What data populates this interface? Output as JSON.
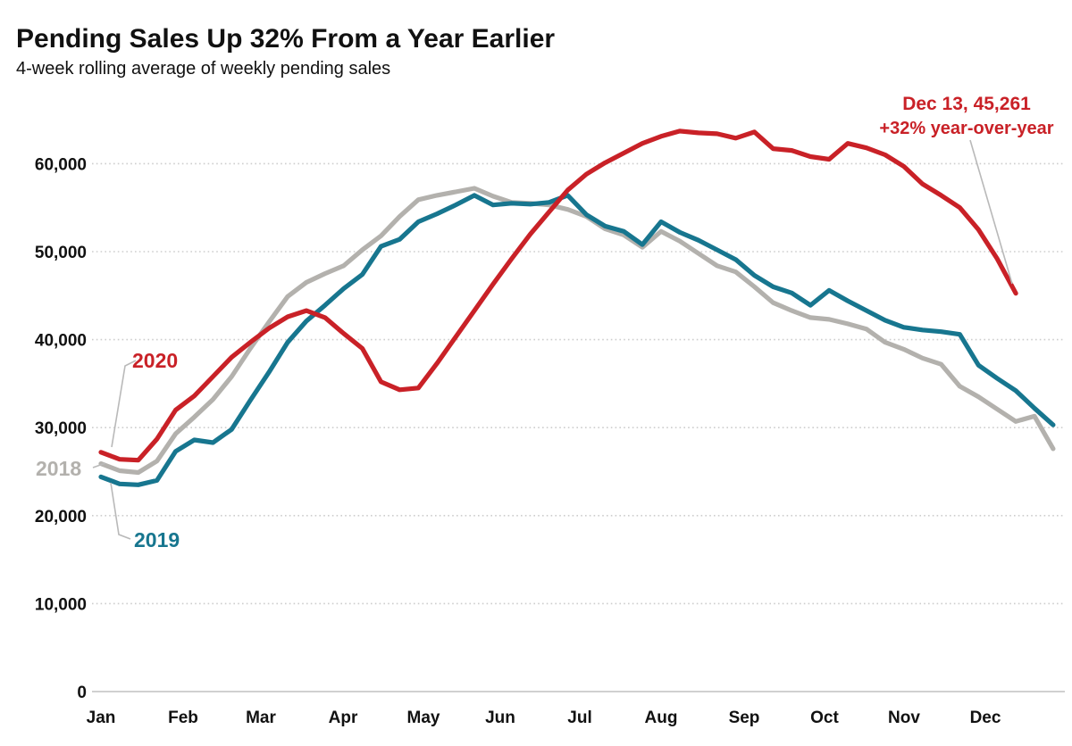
{
  "header": {
    "title": "Pending Sales Up 32% From a Year Earlier",
    "subtitle": "4-week rolling average of weekly pending sales"
  },
  "chart_data": {
    "type": "line",
    "title": "Pending Sales Up 32% From a Year Earlier",
    "subtitle": "4-week rolling average of weekly pending sales",
    "x_unit": "weeks (Jan through Dec)",
    "categories_months": [
      "Jan",
      "Feb",
      "Mar",
      "Apr",
      "May",
      "Jun",
      "Jul",
      "Aug",
      "Sep",
      "Oct",
      "Nov",
      "Dec"
    ],
    "y_ticks": [
      0,
      10000,
      20000,
      30000,
      40000,
      50000,
      60000
    ],
    "ylim": [
      0,
      66000
    ],
    "grid": "horizontal-dotted",
    "legend_position": "inline-labels-near-line-starts",
    "colors": {
      "red_2020": "#c92127",
      "teal_2019": "#17768f",
      "gray_2018": "#b3b1ad",
      "leader_gray": "#b9b9b9",
      "gridline": "#cdcdcd",
      "axis_line": "#c9c9c9"
    },
    "series": [
      {
        "name": "2018",
        "color": "#b3b1ad",
        "values": [
          25900,
          25100,
          24900,
          26200,
          29300,
          31200,
          33200,
          35800,
          39000,
          42000,
          44900,
          46500,
          47500,
          48400,
          50200,
          51800,
          54000,
          55900,
          56400,
          56800,
          57200,
          56300,
          55600,
          55500,
          55300,
          54800,
          54000,
          52600,
          51900,
          50500,
          52300,
          51200,
          49800,
          48400,
          47700,
          46000,
          44200,
          43300,
          42500,
          42300,
          41800,
          41200,
          39700,
          38900,
          37900,
          37200,
          34700,
          33500,
          32100,
          30700,
          31300,
          27600
        ]
      },
      {
        "name": "2019",
        "color": "#17768f",
        "values": [
          24400,
          23600,
          23500,
          24000,
          27300,
          28600,
          28300,
          29800,
          33100,
          36300,
          39700,
          42100,
          43900,
          45800,
          47400,
          50600,
          51400,
          53400,
          54300,
          55300,
          56400,
          55300,
          55500,
          55400,
          55600,
          56400,
          54200,
          52900,
          52300,
          50800,
          53400,
          52200,
          51300,
          50200,
          49100,
          47300,
          46000,
          45300,
          43900,
          45600,
          44400,
          43300,
          42200,
          41400,
          41100,
          40900,
          40600,
          37100,
          35600,
          34200,
          32200,
          30300
        ]
      },
      {
        "name": "2020",
        "color": "#c92127",
        "values": [
          27200,
          26400,
          26300,
          28700,
          32000,
          33600,
          35800,
          38000,
          39700,
          41300,
          42600,
          43300,
          42500,
          40700,
          39000,
          35200,
          34300,
          34500,
          37300,
          40300,
          43300,
          46300,
          49200,
          52000,
          54500,
          57000,
          58800,
          60100,
          61200,
          62300,
          63100,
          63700,
          63500,
          63400,
          62900,
          63600,
          61700,
          61500,
          60800,
          60500,
          62300,
          61800,
          61000,
          59700,
          57700,
          56400,
          55000,
          52500,
          49200,
          45261
        ]
      }
    ],
    "annotation": {
      "line1": "Dec 13, 45,261",
      "line2": "+32% year-over-year",
      "color": "#c92127",
      "points_to": "last 2020 value"
    },
    "last_2020_point": {
      "date_label": "Dec 13",
      "value": 45261,
      "yoy_change": "+32%"
    }
  }
}
